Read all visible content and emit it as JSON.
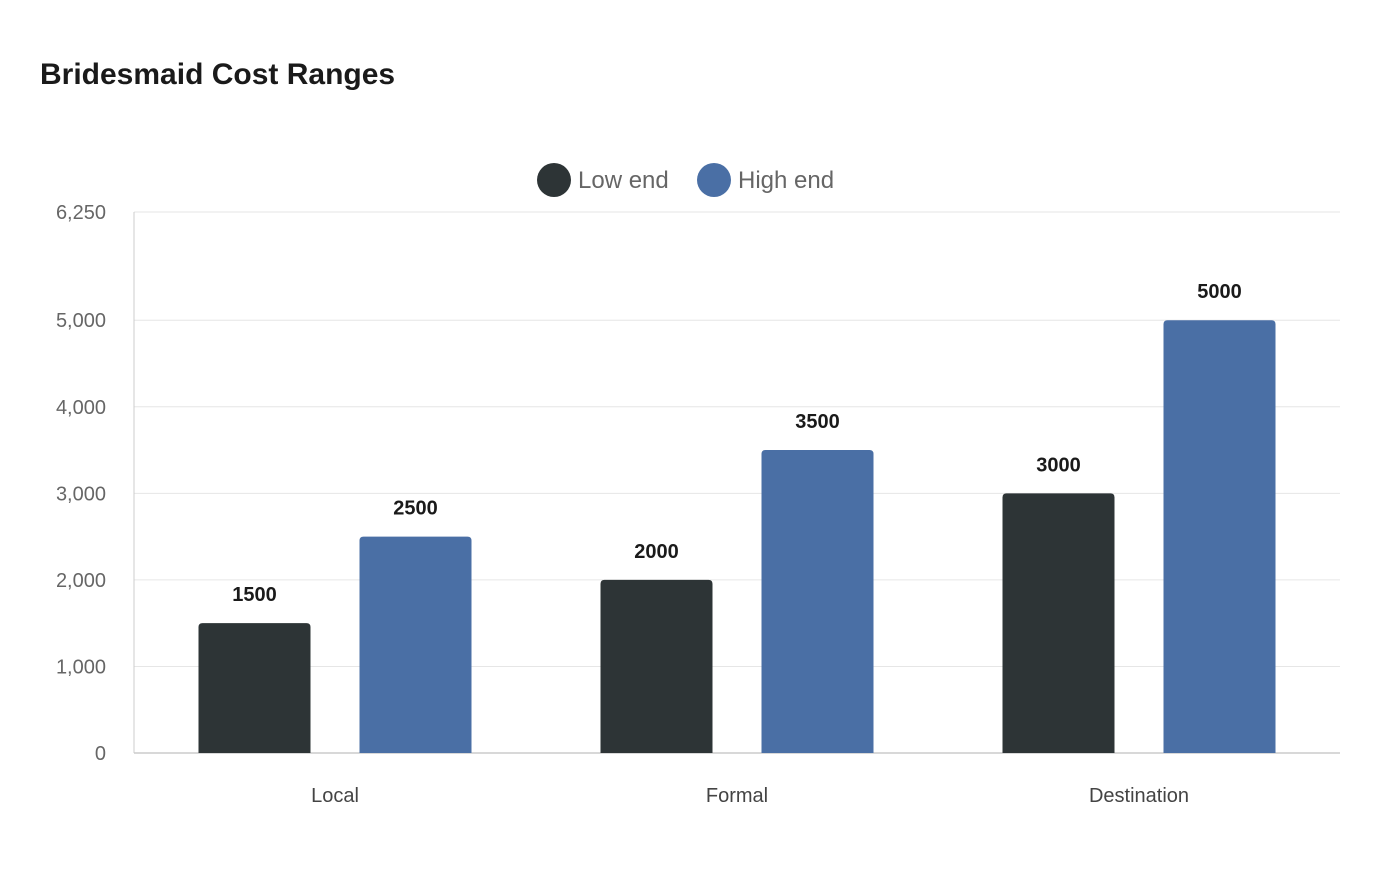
{
  "colors": {
    "low_end": "#2d3436",
    "high_end": "#4a6fa5",
    "grid": "#e6e6e6",
    "axis": "#cccccc"
  },
  "chart_data": {
    "type": "bar",
    "title": "Bridesmaid Cost Ranges",
    "xlabel": "",
    "ylabel": "",
    "categories": [
      "Local",
      "Formal",
      "Destination"
    ],
    "series": [
      {
        "name": "Low end",
        "values": [
          1500,
          2000,
          3000
        ],
        "color": "#2d3436"
      },
      {
        "name": "High end",
        "values": [
          2500,
          3500,
          5000
        ],
        "color": "#4a6fa5"
      }
    ],
    "ylim": [
      0,
      6250
    ],
    "yticks": [
      0,
      1000,
      2000,
      3000,
      4000,
      5000,
      6250
    ],
    "ytick_labels": [
      "0",
      "1,000",
      "2,000",
      "3,000",
      "4,000",
      "5,000",
      "6,250"
    ],
    "grid": true,
    "legend_position": "top-center",
    "data_labels": true
  }
}
